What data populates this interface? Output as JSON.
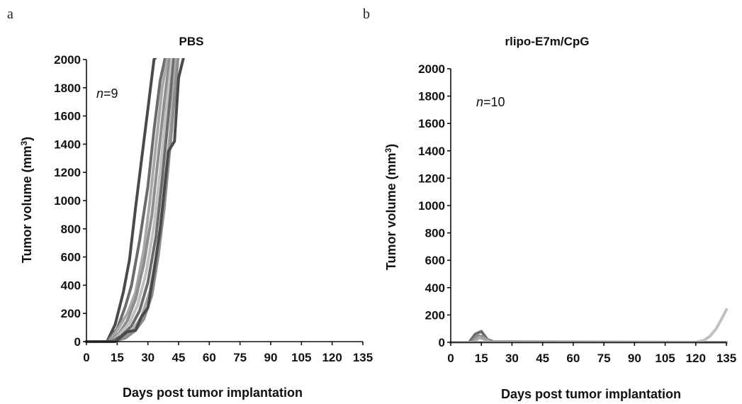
{
  "chart_data": [
    {
      "type": "line",
      "panel_label": "a",
      "title": "PBS",
      "xlabel": "Days post tumor implantation",
      "ylabel": "Tumor volume (mm³)",
      "ylabel_main": "Tumor volume (mm",
      "ylabel_sup": "3",
      "ylabel_end": ")",
      "annotation_italic": "n",
      "annotation_rest": "=9",
      "xlim": [
        0,
        135
      ],
      "ylim": [
        0,
        2000
      ],
      "xticks": [
        0,
        15,
        30,
        45,
        60,
        75,
        90,
        105,
        120,
        135
      ],
      "yticks": [
        0,
        200,
        400,
        600,
        800,
        1000,
        1200,
        1400,
        1600,
        1800,
        2000
      ],
      "colors": [
        "#4a4a4a",
        "#6b6b6b",
        "#8e8e8e",
        "#a8a8a8",
        "#c0c0c0"
      ],
      "series": [
        {
          "color": "#4a4a4a",
          "x": [
            0,
            10,
            14,
            18,
            21,
            24,
            27,
            30,
            33,
            36
          ],
          "y": [
            0,
            0,
            120,
            350,
            580,
            950,
            1300,
            1650,
            2000,
            2050
          ]
        },
        {
          "color": "#6b6b6b",
          "x": [
            0,
            10,
            15,
            19,
            22,
            26,
            30,
            33,
            36,
            39
          ],
          "y": [
            0,
            0,
            90,
            250,
            400,
            720,
            1100,
            1500,
            1850,
            2050
          ]
        },
        {
          "color": "#a8a8a8",
          "x": [
            0,
            11,
            15,
            20,
            24,
            28,
            31,
            34,
            37,
            40
          ],
          "y": [
            0,
            0,
            80,
            200,
            350,
            650,
            1000,
            1400,
            1800,
            2050
          ]
        },
        {
          "color": "#8e8e8e",
          "x": [
            0,
            11,
            16,
            20,
            24,
            28,
            32,
            35,
            38,
            41
          ],
          "y": [
            0,
            0,
            60,
            150,
            300,
            550,
            900,
            1300,
            1700,
            2050
          ]
        },
        {
          "color": "#c0c0c0",
          "x": [
            0,
            12,
            16,
            21,
            25,
            29,
            33,
            36,
            39,
            42
          ],
          "y": [
            0,
            0,
            50,
            130,
            260,
            480,
            820,
            1200,
            1650,
            2050
          ]
        },
        {
          "color": "#6b6b6b",
          "x": [
            0,
            12,
            17,
            22,
            26,
            30,
            34,
            37,
            40,
            43
          ],
          "y": [
            0,
            0,
            40,
            110,
            220,
            420,
            750,
            1150,
            1600,
            2050
          ]
        },
        {
          "color": "#a8a8a8",
          "x": [
            0,
            13,
            18,
            23,
            27,
            31,
            35,
            38,
            41,
            44
          ],
          "y": [
            0,
            0,
            30,
            90,
            180,
            360,
            680,
            1050,
            1500,
            2050
          ]
        },
        {
          "color": "#8e8e8e",
          "x": [
            0,
            13,
            19,
            24,
            28,
            32,
            35,
            38,
            41,
            45
          ],
          "y": [
            0,
            0,
            25,
            80,
            160,
            330,
            600,
            950,
            1400,
            2050
          ]
        },
        {
          "color": "#4a4a4a",
          "x": [
            0,
            14,
            20,
            24,
            27,
            30,
            33,
            36,
            40,
            43,
            45,
            48
          ],
          "y": [
            0,
            0,
            70,
            80,
            180,
            240,
            500,
            800,
            1350,
            1420,
            1870,
            2050
          ]
        }
      ]
    },
    {
      "type": "line",
      "panel_label": "b",
      "title": "rlipo-E7m/CpG",
      "xlabel": "Days post tumor implantation",
      "ylabel": "Tumor volume (mm³)",
      "ylabel_main": "Tumor volume (mm",
      "ylabel_sup": "3",
      "ylabel_end": ")",
      "annotation_italic": "n",
      "annotation_rest": "=10",
      "xlim": [
        0,
        135
      ],
      "ylim": [
        0,
        2000
      ],
      "xticks": [
        0,
        15,
        30,
        45,
        60,
        75,
        90,
        105,
        120,
        135
      ],
      "yticks": [
        0,
        200,
        400,
        600,
        800,
        1000,
        1200,
        1400,
        1600,
        1800,
        2000
      ],
      "colors": [
        "#6b6b6b",
        "#8e8e8e",
        "#a8a8a8",
        "#c0c0c0"
      ],
      "series": [
        {
          "color": "#6b6b6b",
          "x": [
            0,
            9,
            12,
            15,
            18,
            22,
            135
          ],
          "y": [
            0,
            0,
            60,
            80,
            20,
            0,
            0
          ]
        },
        {
          "color": "#8e8e8e",
          "x": [
            0,
            10,
            13,
            16,
            19,
            135
          ],
          "y": [
            0,
            0,
            50,
            40,
            5,
            0
          ]
        },
        {
          "color": "#a8a8a8",
          "x": [
            0,
            11,
            14,
            17,
            20,
            135
          ],
          "y": [
            0,
            0,
            35,
            20,
            0,
            0
          ]
        },
        {
          "color": "#c0c0c0",
          "x": [
            0,
            120,
            124,
            127,
            130,
            133,
            135
          ],
          "y": [
            0,
            0,
            15,
            45,
            100,
            180,
            240
          ]
        }
      ]
    }
  ]
}
